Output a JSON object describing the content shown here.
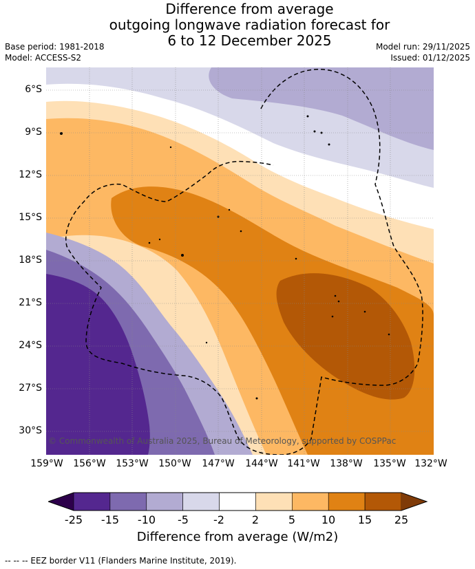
{
  "title": {
    "line1": "Difference from average",
    "line2": "outgoing longwave radiation forecast for",
    "line3": "6 to 12 December 2025"
  },
  "meta": {
    "base_period": "Base period: 1981-2018",
    "model": "Model: ACCESS-S2",
    "model_run": "Model run: 29/11/2025",
    "issued": "Issued: 01/12/2025"
  },
  "map": {
    "copyright": "© Commonwealth of Australia 2025, Bureau of Meteorology, supported by COSPPac",
    "lat_labels": [
      "6°S",
      "9°S",
      "12°S",
      "15°S",
      "18°S",
      "21°S",
      "24°S",
      "27°S",
      "30°S"
    ],
    "lon_labels": [
      "159°W",
      "156°W",
      "153°W",
      "150°W",
      "147°W",
      "144°W",
      "141°W",
      "138°W",
      "135°W",
      "132°W"
    ]
  },
  "colorbar": {
    "ticks": [
      "-25",
      "-15",
      "-10",
      "-5",
      "-2",
      "2",
      "5",
      "10",
      "15",
      "25"
    ],
    "label": "Difference from average (W/m2)",
    "colors": [
      "#54278f",
      "#7e6aaf",
      "#b2abd2",
      "#d8d8ea",
      "#ffffff",
      "#fee0b6",
      "#fdb863",
      "#e08214",
      "#b35806"
    ],
    "under_color": "#2d004b",
    "over_color": "#7f3b08"
  },
  "legend": {
    "eez": "--  --  -- EEZ border V11 (Flanders Marine Institute, 2019)."
  }
}
